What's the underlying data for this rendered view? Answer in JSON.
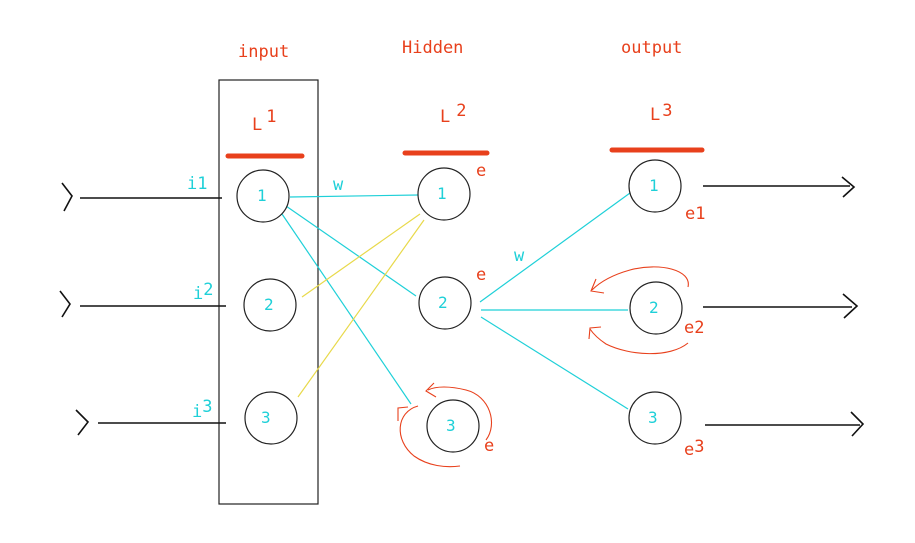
{
  "layers": {
    "input": {
      "title": "input",
      "code": "L",
      "num": "1"
    },
    "hidden": {
      "title": "Hidden",
      "code": "L",
      "num": "2"
    },
    "output": {
      "title": "output",
      "code": "L",
      "num": "3"
    }
  },
  "input_nodes": [
    "1",
    "2",
    "3"
  ],
  "hidden_nodes": [
    "1",
    "2",
    "3"
  ],
  "output_nodes": [
    "1",
    "2",
    "3"
  ],
  "input_labels": [
    {
      "a": "i",
      "b": "1"
    },
    {
      "a": "i",
      "b": "2"
    },
    {
      "a": "i",
      "b": "3"
    }
  ],
  "weight_labels": [
    "w",
    "w"
  ],
  "hidden_errors": [
    "e",
    "e",
    "e"
  ],
  "output_errors": [
    {
      "a": "e",
      "b": "1"
    },
    {
      "a": "e",
      "b": "2"
    },
    {
      "a": "e",
      "b": "3"
    }
  ],
  "colors": {
    "red": "#e8401c",
    "cyan": "#1fd0d8",
    "yellow": "#e8d94a",
    "ink": "#222222"
  }
}
